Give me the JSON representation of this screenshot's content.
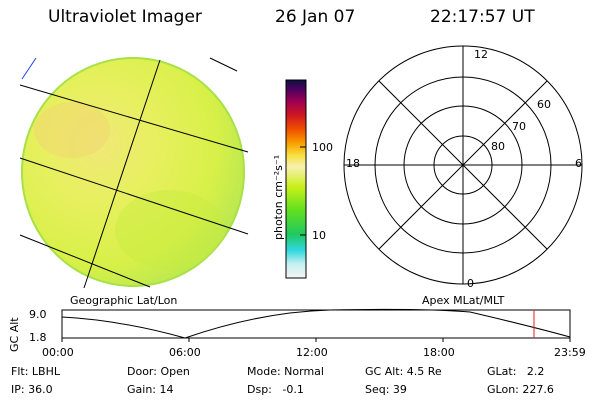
{
  "header": {
    "instrument": "Ultraviolet Imager",
    "date": "26 Jan 07",
    "time": "22:17:57 UT"
  },
  "colorbar": {
    "unit_label": "photon cm⁻²s⁻¹",
    "ticks": [
      "100",
      "10"
    ]
  },
  "left_panel": {
    "caption": "Geographic Lat/Lon"
  },
  "polar_plot": {
    "caption": "Apex MLat/MLT",
    "mlt_labels": {
      "top": "12",
      "left": "18",
      "right": "6",
      "bottom": "0"
    },
    "mlat_labels": [
      "60",
      "70",
      "80"
    ]
  },
  "altitude_plot": {
    "ylabel": "GC Alt",
    "yticks": [
      "9.0",
      "1.8"
    ],
    "xticks": [
      "00:00",
      "06:00",
      "12:00",
      "18:00",
      "23:59"
    ]
  },
  "info": {
    "flt": "Flt: LBHL",
    "ip": "IP: 36.0",
    "door": "Door: Open",
    "gain": "Gain: 14",
    "mode": "Mode: Normal",
    "dsp": "Dsp:   -0.1",
    "gcalt": "GC Alt: 4.5 Re",
    "seq": "Seq: 39",
    "glat": "GLat:   2.2",
    "glon": "GLon: 227.6"
  }
}
